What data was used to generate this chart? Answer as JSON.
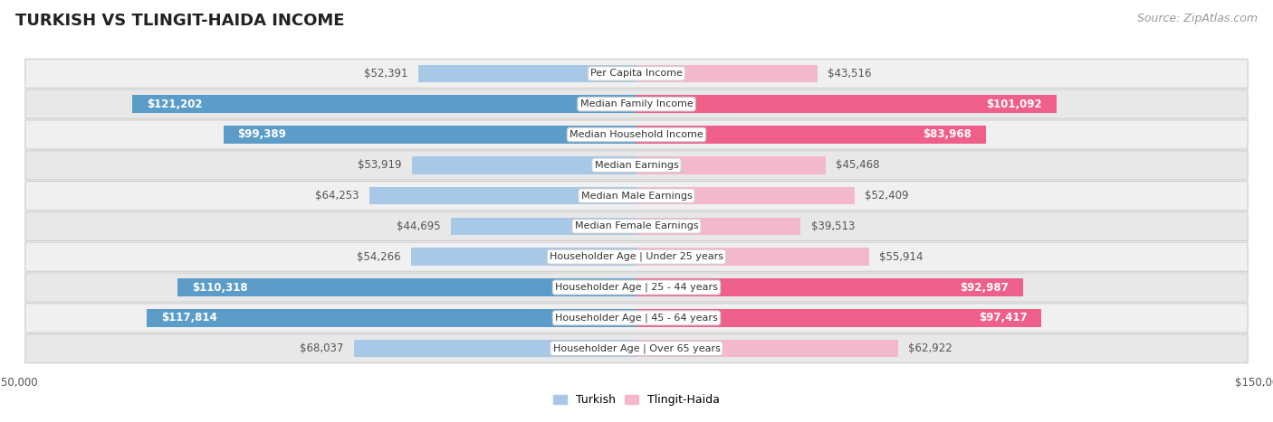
{
  "title": "TURKISH VS TLINGIT-HAIDA INCOME",
  "source": "Source: ZipAtlas.com",
  "categories": [
    "Per Capita Income",
    "Median Family Income",
    "Median Household Income",
    "Median Earnings",
    "Median Male Earnings",
    "Median Female Earnings",
    "Householder Age | Under 25 years",
    "Householder Age | 25 - 44 years",
    "Householder Age | 45 - 64 years",
    "Householder Age | Over 65 years"
  ],
  "turkish_values": [
    52391,
    121202,
    99389,
    53919,
    64253,
    44695,
    54266,
    110318,
    117814,
    68037
  ],
  "tlingit_values": [
    43516,
    101092,
    83968,
    45468,
    52409,
    39513,
    55914,
    92987,
    97417,
    62922
  ],
  "turkish_labels": [
    "$52,391",
    "$121,202",
    "$99,389",
    "$53,919",
    "$64,253",
    "$44,695",
    "$54,266",
    "$110,318",
    "$117,814",
    "$68,037"
  ],
  "tlingit_labels": [
    "$43,516",
    "$101,092",
    "$83,968",
    "$45,468",
    "$52,409",
    "$39,513",
    "$55,914",
    "$92,987",
    "$97,417",
    "$62,922"
  ],
  "max_value": 150000,
  "turkish_color_light": "#a8c8e8",
  "turkish_color_dark": "#5b9dc8",
  "tlingit_color_light": "#f4b8cc",
  "tlingit_color_dark": "#ee5f8a",
  "turkish_inside_threshold": 80000,
  "tlingit_inside_threshold": 75000,
  "bar_height": 0.58,
  "row_bg_even": "#f0f0f0",
  "row_bg_odd": "#e8e8e8",
  "background_color": "#ffffff",
  "title_fontsize": 13,
  "source_fontsize": 9,
  "label_fontsize": 8.5,
  "cat_fontsize": 8,
  "legend_fontsize": 9,
  "axis_label_fontsize": 8.5,
  "border_color": "#cccccc"
}
